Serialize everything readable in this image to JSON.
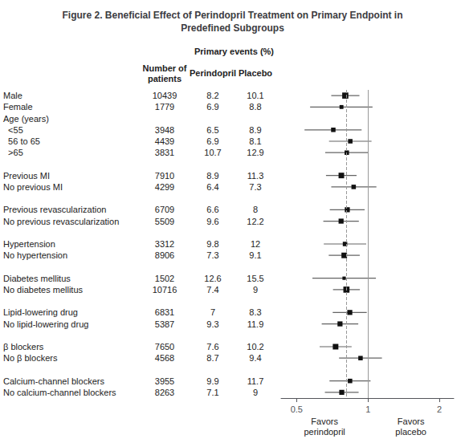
{
  "chart_data": {
    "type": "forest",
    "title": "Figure 2. Beneficial Effect of Perindopril Treatment on Primary Endpoint in\nPredefined Subgroups",
    "categories": [
      "Male",
      "Female",
      "Age (years)",
      "  <55",
      "  56 to 65",
      "  >65",
      null,
      "Previous MI",
      "No previous MI",
      null,
      "Previous revascularization",
      "No previous revascularization",
      null,
      "Hypertension",
      "No hypertension",
      null,
      "Diabetes mellitus",
      "No diabetes mellitus",
      null,
      "Lipid-lowering drug",
      "No lipid-lowering drug",
      null,
      "β blockers",
      "No β blockers",
      null,
      "Calcium-channel blockers",
      "No calcium-channel blockers"
    ],
    "values": [
      0.802,
      0.773,
      null,
      0.714,
      0.842,
      0.814,
      null,
      0.772,
      0.87,
      null,
      0.818,
      0.77,
      null,
      0.8,
      0.794,
      null,
      0.793,
      0.811,
      null,
      0.838,
      0.762,
      null,
      0.73,
      0.93,
      null,
      0.84,
      0.775
    ],
    "ci_lower": [
      0.7,
      0.57,
      null,
      0.54,
      0.685,
      0.66,
      null,
      0.665,
      0.7,
      null,
      0.69,
      0.648,
      null,
      0.651,
      0.683,
      null,
      0.583,
      0.712,
      null,
      0.71,
      0.638,
      null,
      0.625,
      0.755,
      null,
      0.688,
      0.658
    ],
    "ci_upper": [
      0.92,
      1.045,
      null,
      0.94,
      1.035,
      1.005,
      null,
      0.895,
      1.085,
      null,
      0.968,
      0.915,
      null,
      0.983,
      0.923,
      null,
      1.08,
      0.924,
      null,
      0.988,
      0.91,
      null,
      0.853,
      1.145,
      null,
      1.025,
      0.913
    ],
    "box_sizes": [
      5.5,
      3.5,
      null,
      4.0,
      4.0,
      4.0,
      null,
      5.0,
      4.0,
      null,
      4.5,
      4.5,
      null,
      4.0,
      5.0,
      null,
      3.0,
      5.5,
      null,
      4.5,
      4.5,
      null,
      5.0,
      4.0,
      null,
      4.0,
      4.5
    ],
    "patients": [
      "10439",
      "1779",
      null,
      "3948",
      "4439",
      "3831",
      null,
      "7910",
      "4299",
      null,
      "6709",
      "5509",
      null,
      "3312",
      "8906",
      null,
      "1502",
      "10716",
      null,
      "6831",
      "5387",
      null,
      "7650",
      "4568",
      null,
      "3955",
      "8263"
    ],
    "perindopril_events": [
      "8.2",
      "6.9",
      null,
      "6.5",
      "6.9",
      "10.7",
      null,
      "8.9",
      "6.4",
      null,
      "6.6",
      "9.6",
      null,
      "9.8",
      "7.3",
      null,
      "12.6",
      "7.4",
      null,
      "7",
      "9.3",
      null,
      "7.6",
      "8.7",
      null,
      "9.9",
      "7.1"
    ],
    "placebo_events": [
      "10.1",
      "8.8",
      null,
      "8.9",
      "8.1",
      "12.9",
      null,
      "11.3",
      "7.3",
      null,
      "8",
      "12.2",
      null,
      "12",
      "9.1",
      null,
      "15.5",
      "9",
      null,
      "8.3",
      "11.9",
      null,
      "10.2",
      "9.4",
      null,
      "11.7",
      "9"
    ],
    "headers": {
      "group": "Primary events (%)",
      "patients": "Number of\npatients",
      "perindopril": "Perindopril",
      "placebo": "Placebo"
    },
    "annotations": {
      "left": "Favors\nperindopril",
      "right": "Favors\nplacebo"
    },
    "reference_lines": [
      {
        "x": 1.0,
        "line_style": "solid"
      },
      {
        "x": 0.813,
        "line_style": "dashed"
      }
    ],
    "log": "x",
    "xlim": [
      0.43,
      2.3
    ],
    "xticks": [
      0.5,
      1,
      2
    ],
    "grid": false,
    "color": "#111111"
  }
}
